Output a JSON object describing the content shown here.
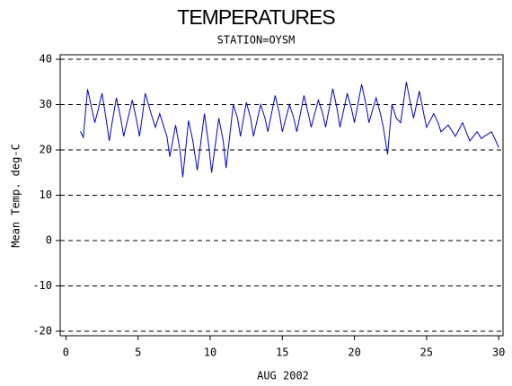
{
  "chart_data": {
    "type": "line",
    "title": "TEMPERATURES",
    "subtitle": "STATION=OYSM",
    "x_label": "AUG 2002",
    "y_label": "Mean Temp. deg-C",
    "xlim": [
      -0.4,
      30.3
    ],
    "ylim": [
      -21,
      41
    ],
    "xticks": [
      0,
      5,
      10,
      15,
      20,
      25,
      30
    ],
    "yticks": [
      -20,
      -10,
      0,
      10,
      20,
      30,
      40
    ],
    "grid": true,
    "series": [
      {
        "name": "Mean Temp",
        "color": "#0000cc",
        "x": [
          1.0,
          1.2,
          1.5,
          1.8,
          2.0,
          2.2,
          2.5,
          2.8,
          3.0,
          3.2,
          3.5,
          3.8,
          4.0,
          4.3,
          4.6,
          4.9,
          5.1,
          5.3,
          5.5,
          5.9,
          6.2,
          6.5,
          6.8,
          7.0,
          7.2,
          7.6,
          7.9,
          8.1,
          8.5,
          8.8,
          9.1,
          9.6,
          9.9,
          10.1,
          10.6,
          10.9,
          11.1,
          11.6,
          11.9,
          12.1,
          12.5,
          12.8,
          13.0,
          13.5,
          13.8,
          14.0,
          14.5,
          14.8,
          15.0,
          15.5,
          15.8,
          16.0,
          16.5,
          16.8,
          17.0,
          17.5,
          17.8,
          18.0,
          18.5,
          18.8,
          19.0,
          19.5,
          19.8,
          20.0,
          20.5,
          20.8,
          21.0,
          21.5,
          21.8,
          22.0,
          22.3,
          22.6,
          22.9,
          23.2,
          23.6,
          23.9,
          24.1,
          24.5,
          24.8,
          25.0,
          25.5,
          25.8,
          26.0,
          26.5,
          26.8,
          27.0,
          27.5,
          27.8,
          28.0,
          28.5,
          28.8,
          29.0,
          29.5,
          29.8,
          30.0
        ],
        "values": [
          24.1,
          22.8,
          33.4,
          29.0,
          26.0,
          28.5,
          32.5,
          26.5,
          22.0,
          26.0,
          31.5,
          27.0,
          23.0,
          27.0,
          31.0,
          26.5,
          23.0,
          27.5,
          32.5,
          28.0,
          25.0,
          28.0,
          25.0,
          23.0,
          18.5,
          25.5,
          20.0,
          14.0,
          26.5,
          22.0,
          15.5,
          28.0,
          21.0,
          15.0,
          27.0,
          22.0,
          16.0,
          30.0,
          27.0,
          23.0,
          30.5,
          27.0,
          23.0,
          30.0,
          27.0,
          24.0,
          32.0,
          28.0,
          24.0,
          30.0,
          27.0,
          24.0,
          32.0,
          28.0,
          25.0,
          31.0,
          28.0,
          25.0,
          33.5,
          29.0,
          25.0,
          32.5,
          29.0,
          26.0,
          34.5,
          30.0,
          26.0,
          31.5,
          28.0,
          25.0,
          19.0,
          30.0,
          27.0,
          26.0,
          35.0,
          30.0,
          27.0,
          33.0,
          28.0,
          25.0,
          28.0,
          26.0,
          24.0,
          25.5,
          24.0,
          23.0,
          26.0,
          23.5,
          22.0,
          24.0,
          22.5,
          23.0,
          24.0,
          22.0,
          20.5
        ]
      }
    ]
  }
}
